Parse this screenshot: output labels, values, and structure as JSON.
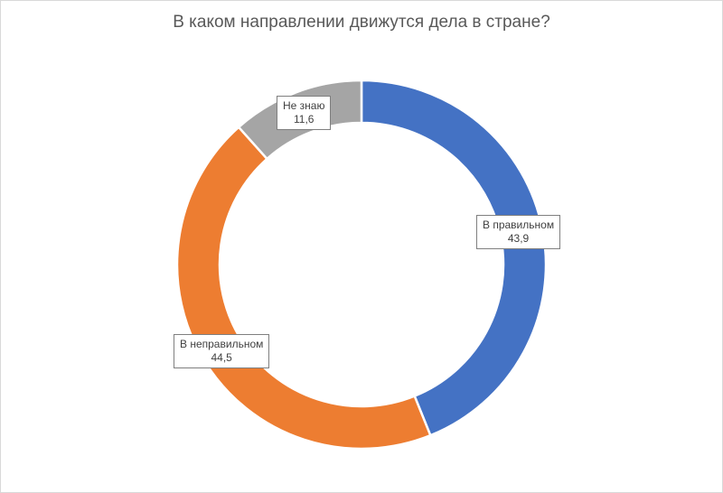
{
  "chart_data": {
    "type": "pie",
    "variant": "doughnut",
    "title": "В каком направлении движутся дела в стране?",
    "slices": [
      {
        "label": "В правильном",
        "value": 43.9,
        "value_text": "43,9",
        "color": "#4472C4"
      },
      {
        "label": "В неправильном",
        "value": 44.5,
        "value_text": "44,5",
        "color": "#ED7D31"
      },
      {
        "label": "Не знаю",
        "value": 11.6,
        "value_text": "11,6",
        "color": "#A5A5A5"
      }
    ],
    "legend": "none"
  }
}
